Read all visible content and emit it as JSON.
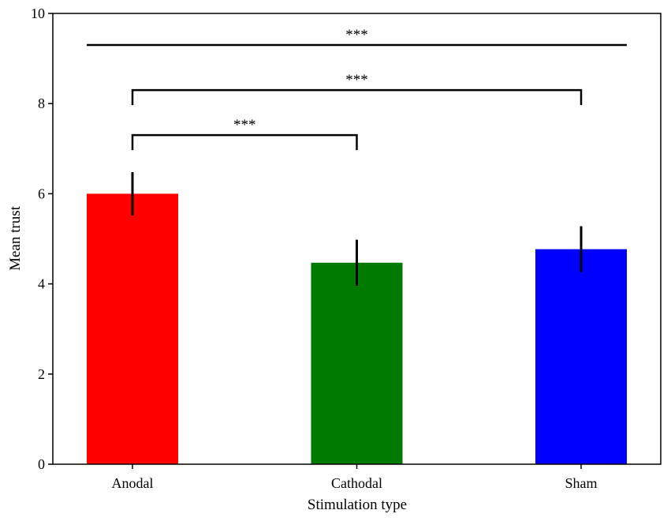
{
  "chart_data": {
    "type": "bar",
    "title": "",
    "xlabel": "Stimulation type",
    "ylabel": "Mean trust",
    "ylim": [
      0,
      10
    ],
    "yticks": [
      0,
      2,
      4,
      6,
      8,
      10
    ],
    "grid": false,
    "categories": [
      "Anodal",
      "Cathodal",
      "Sham"
    ],
    "series": [
      {
        "values": [
          6.0,
          4.47,
          4.77
        ],
        "error": [
          0.48,
          0.51,
          0.51
        ],
        "colors": [
          "#ff0000",
          "#007a00",
          "#0000ff"
        ]
      }
    ],
    "annotations": [
      {
        "from": "Anodal",
        "to": "Cathodal",
        "y": 7.3,
        "label": "***"
      },
      {
        "from": "Anodal",
        "to": "Sham",
        "y": 8.3,
        "label": "***"
      },
      {
        "from": "Anodal",
        "to": "Sham",
        "y": 9.3,
        "label": "***",
        "flat": true
      }
    ]
  }
}
